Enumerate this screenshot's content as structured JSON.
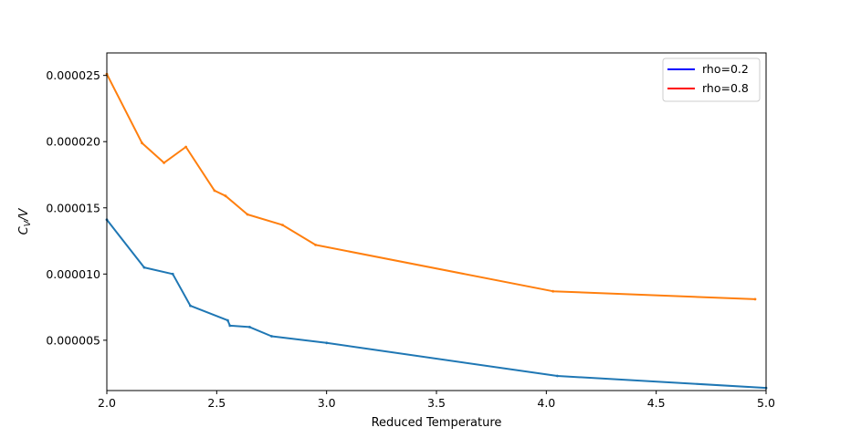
{
  "chart_data": {
    "type": "line",
    "title": "",
    "xlabel": "Reduced Temperature",
    "ylabel": "C_V/V",
    "ylabel_main": "C",
    "ylabel_sub": "V",
    "ylabel_suffix": "/V",
    "xlim": [
      2.0,
      5.0
    ],
    "ylim": [
      1.2e-06,
      2.67e-05
    ],
    "xticks": [
      2.0,
      2.5,
      3.0,
      3.5,
      4.0,
      4.5,
      5.0
    ],
    "xtick_labels": [
      "2.0",
      "2.5",
      "3.0",
      "3.5",
      "4.0",
      "4.5",
      "5.0"
    ],
    "yticks": [
      5e-06,
      1e-05,
      1.5e-05,
      2e-05,
      2.5e-05
    ],
    "ytick_labels": [
      "0.000005",
      "0.000010",
      "0.000015",
      "0.000020",
      "0.000025"
    ],
    "legend_position": "top-right",
    "legend": [
      {
        "label": "rho=0.2",
        "color": "#0000ff"
      },
      {
        "label": "rho=0.8",
        "color": "#ff0000"
      }
    ],
    "series": [
      {
        "name": "rho=0.2 (plotted)",
        "color": "#1f77b4",
        "x": [
          2.0,
          2.17,
          2.3,
          2.38,
          2.55,
          2.56,
          2.65,
          2.75,
          3.0,
          4.05,
          5.0
        ],
        "y": [
          1.41e-05,
          1.05e-05,
          1e-05,
          7.6e-06,
          6.5e-06,
          6.1e-06,
          6e-06,
          5.3e-06,
          4.8e-06,
          2.3e-06,
          1.4e-06
        ]
      },
      {
        "name": "rho=0.8 (plotted)",
        "color": "#ff7f0e",
        "x": [
          2.0,
          2.16,
          2.26,
          2.36,
          2.49,
          2.54,
          2.64,
          2.8,
          2.95,
          4.03,
          4.95
        ],
        "y": [
          2.51e-05,
          1.99e-05,
          1.84e-05,
          1.96e-05,
          1.63e-05,
          1.59e-05,
          1.45e-05,
          1.37e-05,
          1.22e-05,
          8.7e-06,
          8.1e-06
        ]
      }
    ]
  }
}
